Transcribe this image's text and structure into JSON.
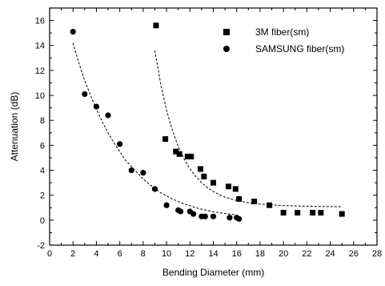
{
  "chart_data": {
    "type": "scatter",
    "title": "",
    "xlabel": "Bending Diameter (mm)",
    "ylabel": "Attenuation (dB)",
    "xlim": [
      0,
      28
    ],
    "ylim": [
      -2,
      17
    ],
    "xticks": [
      0,
      2,
      4,
      6,
      8,
      10,
      12,
      14,
      16,
      18,
      20,
      22,
      24,
      26,
      28
    ],
    "yticks": [
      -2,
      0,
      2,
      4,
      6,
      8,
      10,
      12,
      14,
      16
    ],
    "legend_position": "top-right",
    "grid": false,
    "series": [
      {
        "name": "3M fiber(sm)",
        "marker": "square",
        "color": "#000000",
        "x": [
          9.1,
          9.9,
          10.8,
          11.1,
          11.8,
          12.1,
          12.9,
          13.2,
          14.0,
          15.3,
          15.9,
          16.2,
          17.5,
          18.8,
          20.0,
          21.2,
          22.5,
          23.2,
          25.0
        ],
        "y": [
          15.6,
          6.5,
          5.5,
          5.3,
          5.1,
          5.1,
          4.1,
          3.5,
          3.0,
          2.7,
          2.5,
          1.7,
          1.5,
          1.2,
          0.6,
          0.6,
          0.6,
          0.6,
          0.5
        ],
        "fit_x": [
          9.0,
          9.5,
          10.0,
          10.5,
          11.0,
          11.5,
          12.0,
          12.5,
          13.0,
          13.5,
          14.0,
          14.5,
          15.0,
          15.5,
          16.0,
          16.5,
          17.0,
          18.0,
          19.0,
          20.0,
          21.0,
          22.0,
          23.0,
          24.0,
          25.0
        ],
        "fit_y": [
          13.6,
          10.9,
          8.8,
          7.2,
          5.9,
          4.9,
          4.1,
          3.5,
          3.0,
          2.6,
          2.3,
          2.05,
          1.85,
          1.7,
          1.58,
          1.48,
          1.4,
          1.29,
          1.22,
          1.17,
          1.14,
          1.12,
          1.1,
          1.09,
          1.08
        ]
      },
      {
        "name": "SAMSUNG fiber(sm)",
        "marker": "circle",
        "color": "#000000",
        "x": [
          2.0,
          3.0,
          4.0,
          5.0,
          6.0,
          7.0,
          8.0,
          9.0,
          10.0,
          11.0,
          11.2,
          12.0,
          12.3,
          13.0,
          13.3,
          14.0,
          15.4,
          16.0,
          16.2
        ],
        "y": [
          15.1,
          10.1,
          9.1,
          8.4,
          6.1,
          4.0,
          3.8,
          2.5,
          1.2,
          0.8,
          0.7,
          0.7,
          0.5,
          0.3,
          0.3,
          0.3,
          0.2,
          0.2,
          0.1
        ],
        "fit_x": [
          2.0,
          2.5,
          3.0,
          3.5,
          4.0,
          4.5,
          5.0,
          5.5,
          6.0,
          6.5,
          7.0,
          7.5,
          8.0,
          8.5,
          9.0,
          9.5,
          10.0,
          10.5,
          11.0,
          11.5,
          12.0,
          12.5,
          13.0,
          13.5,
          14.0,
          14.5,
          15.0,
          15.5,
          16.0
        ],
        "fit_y": [
          14.2,
          12.6,
          11.2,
          10.0,
          8.9,
          7.9,
          7.0,
          6.2,
          5.5,
          4.8,
          4.3,
          3.8,
          3.3,
          2.9,
          2.55,
          2.2,
          1.95,
          1.7,
          1.5,
          1.3,
          1.15,
          1.0,
          0.88,
          0.78,
          0.68,
          0.6,
          0.53,
          0.47,
          0.42
        ]
      }
    ]
  }
}
